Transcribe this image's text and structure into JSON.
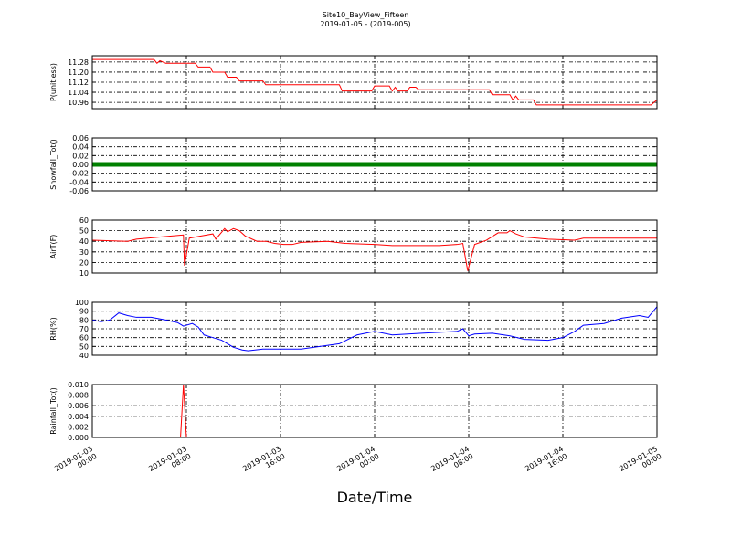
{
  "chart_data": [
    {
      "type": "line",
      "title": "Site10_BayView_Fifteen",
      "subtitle": "2019-01-05 - (2019-005)",
      "ylabel": "P(unitless)",
      "xlim": [
        "2019-01-03 00:00",
        "2019-01-05 00:00"
      ],
      "xticks": [
        "2019-01-03 00:00",
        "2019-01-03 08:00",
        "2019-01-03 16:00",
        "2019-01-04 00:00",
        "2019-01-04 08:00",
        "2019-01-04 16:00",
        "2019-01-05 00:00"
      ],
      "ylim": [
        10.91,
        11.33
      ],
      "yticks": [
        10.96,
        11.04,
        11.12,
        {
          "value": 11.2,
          "label": "11.20"
        },
        11.28
      ],
      "grid": true,
      "x": [
        "2019-01-03 00:00",
        "2019-01-03 05:15",
        "2019-01-03 05:30",
        "2019-01-03 05:45",
        "2019-01-03 06:15",
        "2019-01-03 08:45",
        "2019-01-03 09:00",
        "2019-01-03 10:00",
        "2019-01-03 10:15",
        "2019-01-03 11:15",
        "2019-01-03 11:30",
        "2019-01-03 12:15",
        "2019-01-03 12:30",
        "2019-01-03 14:30",
        "2019-01-03 14:45",
        "2019-01-03 21:00",
        "2019-01-03 21:15",
        "2019-01-03 23:45",
        "2019-01-04 00:00",
        "2019-01-04 01:15",
        "2019-01-04 01:30",
        "2019-01-04 01:45",
        "2019-01-04 02:00",
        "2019-01-04 02:45",
        "2019-01-04 03:00",
        "2019-01-04 03:30",
        "2019-01-04 03:45",
        "2019-01-04 09:45",
        "2019-01-04 10:00",
        "2019-01-04 11:30",
        "2019-01-04 11:45",
        "2019-01-04 12:00",
        "2019-01-04 12:15",
        "2019-01-04 13:30",
        "2019-01-04 13:45",
        "2019-01-04 23:30",
        "2019-01-05 00:00"
      ],
      "series": [
        {
          "color": "#ff0000",
          "values": [
            11.3,
            11.3,
            11.27,
            11.29,
            11.27,
            11.27,
            11.24,
            11.24,
            11.2,
            11.2,
            11.16,
            11.16,
            11.13,
            11.13,
            11.1,
            11.1,
            11.05,
            11.05,
            11.09,
            11.09,
            11.05,
            11.08,
            11.05,
            11.05,
            11.08,
            11.08,
            11.06,
            11.06,
            11.02,
            11.02,
            10.98,
            11.01,
            10.98,
            10.98,
            10.94,
            10.94,
            10.98
          ]
        }
      ]
    },
    {
      "type": "line",
      "ylabel": "Snowfall_Tot()",
      "xlim": [
        "2019-01-03 00:00",
        "2019-01-05 00:00"
      ],
      "xticks": [
        "2019-01-03 00:00",
        "2019-01-03 08:00",
        "2019-01-03 16:00",
        "2019-01-04 00:00",
        "2019-01-04 08:00",
        "2019-01-04 16:00",
        "2019-01-05 00:00"
      ],
      "ylim": [
        -0.06,
        0.06
      ],
      "yticks": [
        -0.06,
        -0.04,
        -0.02,
        {
          "value": 0,
          "label": "0.00"
        },
        0.02,
        0.04,
        0.06
      ],
      "grid": true,
      "x": [
        "2019-01-03 00:00",
        "2019-01-05 00:00"
      ],
      "series": [
        {
          "color": "#008000",
          "values": [
            0,
            0
          ]
        }
      ]
    },
    {
      "type": "line",
      "ylabel": "AirT(F)",
      "xlim": [
        "2019-01-03 00:00",
        "2019-01-05 00:00"
      ],
      "xticks": [
        "2019-01-03 00:00",
        "2019-01-03 08:00",
        "2019-01-03 16:00",
        "2019-01-04 00:00",
        "2019-01-04 08:00",
        "2019-01-04 16:00",
        "2019-01-05 00:00"
      ],
      "ylim": [
        10,
        60
      ],
      "yticks": [
        10,
        20,
        30,
        40,
        50,
        60
      ],
      "grid": true,
      "x": [
        "2019-01-03 00:00",
        "2019-01-03 03:00",
        "2019-01-03 03:45",
        "2019-01-03 06:45",
        "2019-01-03 07:45",
        "2019-01-03 07:50",
        "2019-01-03 08:15",
        "2019-01-03 09:15",
        "2019-01-03 10:15",
        "2019-01-03 10:30",
        "2019-01-03 11:15",
        "2019-01-03 11:30",
        "2019-01-03 12:00",
        "2019-01-03 12:30",
        "2019-01-03 13:00",
        "2019-01-03 14:00",
        "2019-01-03 14:45",
        "2019-01-03 15:30",
        "2019-01-03 16:15",
        "2019-01-03 17:00",
        "2019-01-03 17:45",
        "2019-01-03 20:00",
        "2019-01-03 21:30",
        "2019-01-04 00:00",
        "2019-01-04 01:30",
        "2019-01-04 05:30",
        "2019-01-04 07:00",
        "2019-01-04 07:30",
        "2019-01-04 07:55",
        "2019-01-04 08:30",
        "2019-01-04 09:30",
        "2019-01-04 10:30",
        "2019-01-04 11:15",
        "2019-01-04 11:30",
        "2019-01-04 12:00",
        "2019-01-04 12:45",
        "2019-01-04 14:45",
        "2019-01-04 17:00",
        "2019-01-04 17:45",
        "2019-01-05 00:00"
      ],
      "series": [
        {
          "color": "#ff0000",
          "values": [
            41,
            40,
            42,
            45,
            46,
            17,
            43,
            45,
            47,
            42,
            52,
            49,
            52,
            50,
            45,
            40,
            40,
            38,
            37,
            37,
            39,
            40,
            38,
            37,
            36,
            36,
            37,
            38,
            12,
            37,
            41,
            48,
            48,
            50,
            47,
            44,
            42,
            41,
            43,
            43
          ]
        }
      ]
    },
    {
      "type": "line",
      "ylabel": "RH(%)",
      "xlim": [
        "2019-01-03 00:00",
        "2019-01-05 00:00"
      ],
      "xticks": [
        "2019-01-03 00:00",
        "2019-01-03 08:00",
        "2019-01-03 16:00",
        "2019-01-04 00:00",
        "2019-01-04 08:00",
        "2019-01-04 16:00",
        "2019-01-05 00:00"
      ],
      "ylim": [
        40,
        100
      ],
      "yticks": [
        40,
        50,
        60,
        70,
        80,
        90,
        100
      ],
      "grid": true,
      "x": [
        "2019-01-03 00:00",
        "2019-01-03 00:45",
        "2019-01-03 01:30",
        "2019-01-03 02:15",
        "2019-01-03 03:00",
        "2019-01-03 03:45",
        "2019-01-03 05:00",
        "2019-01-03 06:15",
        "2019-01-03 07:15",
        "2019-01-03 07:45",
        "2019-01-03 08:30",
        "2019-01-03 09:00",
        "2019-01-03 09:30",
        "2019-01-03 10:15",
        "2019-01-03 11:00",
        "2019-01-03 12:00",
        "2019-01-03 12:45",
        "2019-01-03 13:15",
        "2019-01-03 14:30",
        "2019-01-03 17:45",
        "2019-01-03 21:00",
        "2019-01-03 22:30",
        "2019-01-04 00:00",
        "2019-01-04 01:30",
        "2019-01-04 04:00",
        "2019-01-04 07:00",
        "2019-01-04 07:30",
        "2019-01-04 08:00",
        "2019-01-04 08:30",
        "2019-01-04 10:00",
        "2019-01-04 11:30",
        "2019-01-04 12:45",
        "2019-01-04 14:45",
        "2019-01-04 16:00",
        "2019-01-04 17:00",
        "2019-01-04 17:45",
        "2019-01-04 19:30",
        "2019-01-04 21:00",
        "2019-01-04 22:30",
        "2019-01-04 23:15",
        "2019-01-05 00:00"
      ],
      "series": [
        {
          "color": "#0000ff",
          "values": [
            80,
            78,
            80,
            88,
            85,
            83,
            83,
            80,
            77,
            73,
            76,
            72,
            63,
            60,
            57,
            49,
            46,
            45,
            47,
            47,
            53,
            63,
            67,
            63,
            65,
            67,
            70,
            62,
            64,
            65,
            62,
            58,
            57,
            60,
            67,
            74,
            76,
            82,
            85,
            83,
            95
          ]
        }
      ]
    },
    {
      "type": "line",
      "ylabel": "Rainfall_Tot()",
      "xlabel": "Date/Time",
      "xlim": [
        "2019-01-03 00:00",
        "2019-01-05 00:00"
      ],
      "xticks": [
        {
          "value": "2019-01-03 00:00",
          "label": "2019-01-03\n00:00"
        },
        {
          "value": "2019-01-03 08:00",
          "label": "2019-01-03\n08:00"
        },
        {
          "value": "2019-01-03 16:00",
          "label": "2019-01-03\n16:00"
        },
        {
          "value": "2019-01-04 00:00",
          "label": "2019-01-04\n00:00"
        },
        {
          "value": "2019-01-04 08:00",
          "label": "2019-01-04\n08:00"
        },
        {
          "value": "2019-01-04 16:00",
          "label": "2019-01-04\n16:00"
        },
        {
          "value": "2019-01-05 00:00",
          "label": "2019-01-05\n00:00"
        }
      ],
      "ylim": [
        0,
        0.01
      ],
      "yticks": [
        {
          "value": 0,
          "label": "0.000"
        },
        {
          "value": 0.002,
          "label": "0.002"
        },
        {
          "value": 0.004,
          "label": "0.004"
        },
        {
          "value": 0.006,
          "label": "0.006"
        },
        {
          "value": 0.008,
          "label": "0.008"
        },
        {
          "value": 0.01,
          "label": "0.010"
        }
      ],
      "grid": true,
      "x": [
        "2019-01-03 00:00",
        "2019-01-03 07:30",
        "2019-01-03 07:45",
        "2019-01-03 08:00",
        "2019-01-05 00:00"
      ],
      "series": [
        {
          "color": "#ff0000",
          "values": [
            0,
            0,
            0.01,
            0,
            0
          ]
        }
      ]
    }
  ]
}
